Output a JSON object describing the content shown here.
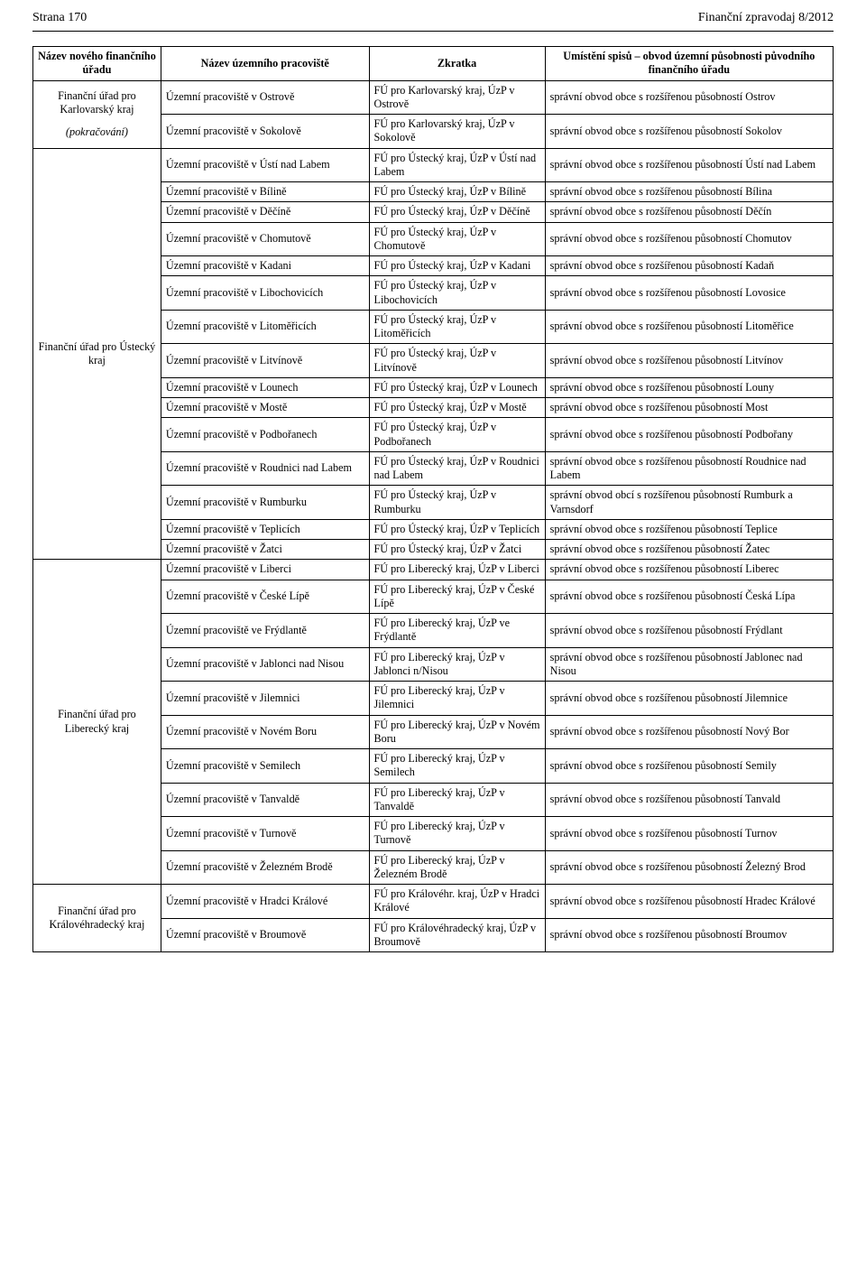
{
  "header": {
    "page_label": "Strana 170",
    "journal_label": "Finanční zpravodaj 8/2012"
  },
  "table": {
    "columns": {
      "office": "Název nového finančního úřadu",
      "workplace": "Název územního pracoviště",
      "abbrev": "Zkratka",
      "jurisdiction": "Umístění spisů – obvod územní působnosti původního finančního úřadu"
    },
    "groups": [
      {
        "office": "Finanční úřad pro Karlovarský kraj\n\n(pokračování)",
        "rows": [
          {
            "workplace": "Územní pracoviště v Ostrově",
            "abbrev": "FÚ pro Karlovarský kraj, ÚzP v Ostrově",
            "jurisdiction": "správní obvod obce s rozšířenou působností Ostrov"
          },
          {
            "workplace": "Územní pracoviště v Sokolově",
            "abbrev": "FÚ pro Karlovarský kraj, ÚzP v Sokolově",
            "jurisdiction": "správní obvod obce s rozšířenou působností Sokolov"
          }
        ]
      },
      {
        "office": "Finanční úřad pro Ústecký kraj",
        "rows": [
          {
            "workplace": "Územní pracoviště v Ústí nad Labem",
            "abbrev": "FÚ pro Ústecký kraj, ÚzP v Ústí nad Labem",
            "jurisdiction": "správní obvod obce s rozšířenou působností Ústí nad Labem"
          },
          {
            "workplace": "Územní pracoviště v Bílině",
            "abbrev": "FÚ pro Ústecký kraj, ÚzP v Bílině",
            "jurisdiction": "správní obvod obce s rozšířenou působností Bílina"
          },
          {
            "workplace": "Územní pracoviště v Děčíně",
            "abbrev": "FÚ pro Ústecký kraj, ÚzP v Děčíně",
            "jurisdiction": "správní obvod obce s rozšířenou působností Děčín"
          },
          {
            "workplace": "Územní pracoviště v Chomutově",
            "abbrev": "FÚ pro Ústecký kraj, ÚzP v Chomutově",
            "jurisdiction": "správní obvod obce s rozšířenou působností Chomutov"
          },
          {
            "workplace": "Územní pracoviště v Kadani",
            "abbrev": "FÚ pro Ústecký kraj, ÚzP v Kadani",
            "jurisdiction": "správní obvod obce s rozšířenou působností Kadaň"
          },
          {
            "workplace": "Územní pracoviště v Libochovicích",
            "abbrev": "FÚ pro Ústecký kraj, ÚzP v Libochovicích",
            "jurisdiction": "správní obvod obce s rozšířenou působností Lovosice"
          },
          {
            "workplace": "Územní pracoviště v Litoměřicích",
            "abbrev": "FÚ pro Ústecký kraj, ÚzP v Litoměřicích",
            "jurisdiction": "správní obvod obce s rozšířenou působností Litoměřice"
          },
          {
            "workplace": "Územní pracoviště v Litvínově",
            "abbrev": "FÚ pro Ústecký kraj, ÚzP v Litvínově",
            "jurisdiction": "správní obvod obce s rozšířenou působností Litvínov"
          },
          {
            "workplace": "Územní pracoviště v Lounech",
            "abbrev": "FÚ pro Ústecký kraj, ÚzP v Lounech",
            "jurisdiction": "správní obvod obce s rozšířenou působností Louny"
          },
          {
            "workplace": "Územní pracoviště v Mostě",
            "abbrev": "FÚ pro Ústecký kraj, ÚzP v Mostě",
            "jurisdiction": "správní obvod obce s rozšířenou působností Most"
          },
          {
            "workplace": "Územní pracoviště v Podbořanech",
            "abbrev": "FÚ pro Ústecký kraj, ÚzP v Podbořanech",
            "jurisdiction": "správní obvod obce s rozšířenou působností Podbořany"
          },
          {
            "workplace": "Územní pracoviště v Roudnici nad Labem",
            "abbrev": "FÚ pro Ústecký kraj, ÚzP v Roudnici nad Labem",
            "jurisdiction": "správní obvod obce s rozšířenou působností Roudnice nad Labem"
          },
          {
            "workplace": "Územní pracoviště v Rumburku",
            "abbrev": "FÚ pro Ústecký kraj, ÚzP v Rumburku",
            "jurisdiction": "správní obvod obcí s rozšířenou působností Rumburk a Varnsdorf"
          },
          {
            "workplace": "Územní pracoviště v Teplicích",
            "abbrev": "FÚ pro Ústecký kraj, ÚzP v Teplicích",
            "jurisdiction": "správní obvod obce s rozšířenou působností Teplice"
          },
          {
            "workplace": "Územní pracoviště v Žatci",
            "abbrev": "FÚ pro Ústecký kraj, ÚzP v Žatci",
            "jurisdiction": "správní obvod obce s rozšířenou působností Žatec"
          }
        ]
      },
      {
        "office": "Finanční úřad pro Liberecký kraj",
        "rows": [
          {
            "workplace": "Územní pracoviště v Liberci",
            "abbrev": "FÚ pro Liberecký kraj, ÚzP v Liberci",
            "jurisdiction": "správní obvod obce s rozšířenou působností Liberec"
          },
          {
            "workplace": "Územní pracoviště v České Lípě",
            "abbrev": "FÚ pro Liberecký kraj, ÚzP v České Lípě",
            "jurisdiction": "správní obvod obce s rozšířenou působností Česká Lípa"
          },
          {
            "workplace": "Územní pracoviště ve Frýdlantě",
            "abbrev": "FÚ pro Liberecký kraj, ÚzP ve Frýdlantě",
            "jurisdiction": "správní obvod obce s rozšířenou působností Frýdlant"
          },
          {
            "workplace": "Územní pracoviště v Jablonci nad Nisou",
            "abbrev": "FÚ pro Liberecký kraj, ÚzP v Jablonci n/Nisou",
            "jurisdiction": "správní obvod obce s rozšířenou působností Jablonec nad Nisou"
          },
          {
            "workplace": "Územní pracoviště v Jilemnici",
            "abbrev": "FÚ pro Liberecký kraj, ÚzP v Jilemnici",
            "jurisdiction": "správní obvod obce s rozšířenou působností Jilemnice"
          },
          {
            "workplace": "Územní pracoviště v Novém Boru",
            "abbrev": "FÚ pro Liberecký kraj, ÚzP v Novém Boru",
            "jurisdiction": "správní obvod obce s rozšířenou působností Nový Bor"
          },
          {
            "workplace": "Územní pracoviště v Semilech",
            "abbrev": "FÚ pro Liberecký kraj, ÚzP v Semilech",
            "jurisdiction": "správní obvod obce s rozšířenou působností Semily"
          },
          {
            "workplace": "Územní pracoviště v Tanvaldě",
            "abbrev": "FÚ pro Liberecký kraj, ÚzP v Tanvaldě",
            "jurisdiction": "správní obvod obce s rozšířenou působností Tanvald"
          },
          {
            "workplace": "Územní pracoviště v Turnově",
            "abbrev": "FÚ pro Liberecký kraj, ÚzP v Turnově",
            "jurisdiction": "správní obvod obce s rozšířenou působností Turnov"
          },
          {
            "workplace": "Územní pracoviště v Železném Brodě",
            "abbrev": "FÚ pro Liberecký kraj, ÚzP v Železném Brodě",
            "jurisdiction": "správní obvod obce s rozšířenou působností Železný Brod"
          }
        ]
      },
      {
        "office": "Finanční úřad pro Královéhradecký kraj",
        "rows": [
          {
            "workplace": "Územní pracoviště v Hradci Králové",
            "abbrev": "FÚ pro Královéhr. kraj, ÚzP v Hradci Králové",
            "jurisdiction": "správní obvod obce s rozšířenou působností Hradec Králové"
          },
          {
            "workplace": "Územní pracoviště v Broumově",
            "abbrev": "FÚ pro Královéhradecký kraj, ÚzP v Broumově",
            "jurisdiction": "správní obvod obce s rozšířenou působností Broumov"
          }
        ]
      }
    ]
  }
}
